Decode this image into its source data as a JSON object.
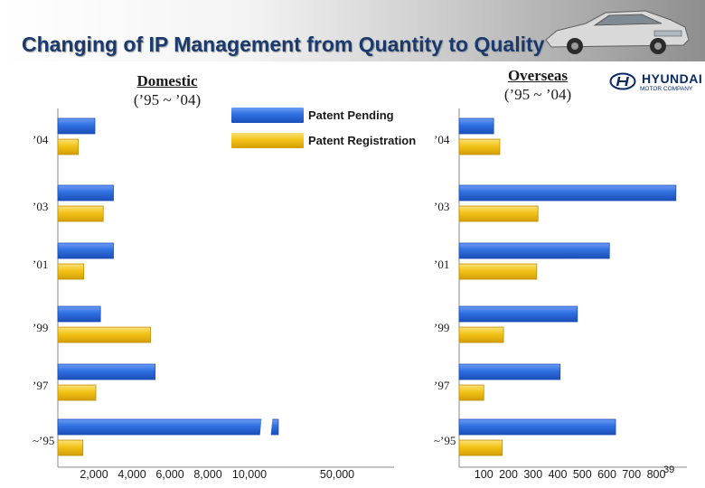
{
  "header": {
    "title": "Changing of IP Management from Quantity to Quality"
  },
  "logo": {
    "word": "HYUNDAI",
    "sub": "MOTOR COMPANY"
  },
  "page_number": "39",
  "colors": {
    "pending": "#2f6fe0",
    "registration": "#f2c417",
    "title": "#1a3a6e"
  },
  "legend": {
    "pending": "Patent Pending",
    "registration": "Patent Registration"
  },
  "domestic": {
    "title": "Domestic",
    "range": "(’95 ~ ’04)"
  },
  "overseas": {
    "title": "Overseas",
    "range": "(’95 ~ ’04)"
  },
  "chart_data": [
    {
      "type": "bar",
      "orientation": "horizontal",
      "title": "Domestic",
      "subtitle": "(’95 ~ ’04)",
      "categories": [
        "’04",
        "’03",
        "’01",
        "’99",
        "’97",
        "~’95"
      ],
      "series": [
        {
          "name": "Patent Pending",
          "values": [
            2000,
            3000,
            3000,
            2300,
            5250,
            20000
          ]
        },
        {
          "name": "Patent Registration",
          "values": [
            1100,
            2450,
            1400,
            5000,
            2050,
            1350
          ]
        }
      ],
      "x_ticks": [
        "2,000",
        "4,000",
        "6,000",
        "8,000",
        "10,000",
        "50,000"
      ],
      "axis_break": true,
      "grid": false,
      "legend_position": "top-right"
    },
    {
      "type": "bar",
      "orientation": "horizontal",
      "title": "Overseas",
      "subtitle": "(’95 ~ ’04)",
      "categories": [
        "’04",
        "’03",
        "’01",
        "’99",
        "’97",
        "~’95"
      ],
      "series": [
        {
          "name": "Patent Pending",
          "values": [
            140,
            880,
            610,
            480,
            410,
            635
          ]
        },
        {
          "name": "Patent Registration",
          "values": [
            165,
            320,
            315,
            180,
            100,
            175
          ]
        }
      ],
      "x_ticks": [
        "100",
        "200",
        "300",
        "400",
        "500",
        "600",
        "700",
        "800"
      ],
      "xlim": [
        0,
        880
      ],
      "grid": false
    }
  ]
}
